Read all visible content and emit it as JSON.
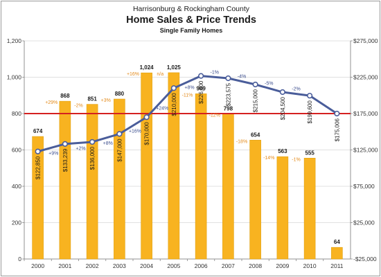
{
  "colors": {
    "bar": "#f8b320",
    "bar_edge": "#e0a010",
    "line": "#4a5d9a",
    "reference": "#d42020",
    "sales_pct": "#e38a1a",
    "price_pct": "#3a4c8c"
  },
  "chart_data": {
    "type": "bar",
    "title": "Harrisonburg & Rockingham County",
    "subtitle": "Home Sales & Price Trends",
    "subtitle2": "Single Family Homes",
    "categories": [
      "2000",
      "2001",
      "2002",
      "2003",
      "2004",
      "2005",
      "2006",
      "2007",
      "2008",
      "2009",
      "2010",
      "2011"
    ],
    "series": [
      {
        "axis": "left",
        "type": "bar",
        "values": [
          674,
          868,
          851,
          880,
          1024,
          1025,
          909,
          798,
          654,
          563,
          555,
          64
        ],
        "labels": [
          "674",
          "868",
          "851",
          "880",
          "1,024",
          "1,025",
          "909",
          "798",
          "654",
          "563",
          "555",
          "64"
        ],
        "change_labels": [
          "",
          "+29%",
          "-2%",
          "+3%",
          "+16%",
          "n/a",
          "-11%",
          "-12%",
          "-18%",
          "-14%",
          "-1%",
          ""
        ]
      },
      {
        "axis": "right",
        "type": "line",
        "values": [
          122850,
          133239,
          136000,
          147000,
          170000,
          210000,
          226800,
          223575,
          215000,
          204500,
          199600,
          175006
        ],
        "labels": [
          "$122,850",
          "$133,239",
          "$136,000",
          "$147,000",
          "$170,000",
          "$210,000",
          "$226,800",
          "$223,575",
          "$215,000",
          "$204,500",
          "$199,600",
          "$175,006"
        ],
        "change_labels": [
          "",
          "+9%",
          "+2%",
          "+8%",
          "+16%",
          "+24%",
          "+8%",
          "-1%",
          "-4%",
          "-5%",
          "-2%",
          ""
        ]
      }
    ],
    "reference_line": {
      "axis": "left",
      "value": 800
    },
    "left_axis": {
      "ylim": [
        0,
        1200
      ],
      "ticks": [
        0,
        200,
        400,
        600,
        800,
        1000,
        1200
      ],
      "tick_labels": [
        "0",
        "200",
        "400",
        "600",
        "800",
        "1,000",
        "1,200"
      ]
    },
    "right_axis": {
      "ylim": [
        -25000,
        275000
      ],
      "ticks": [
        -25000,
        25000,
        75000,
        125000,
        175000,
        225000,
        275000
      ],
      "tick_labels": [
        "-$25,000",
        "$25,000",
        "$75,000",
        "$125,000",
        "$175,000",
        "$225,000",
        "$275,000"
      ]
    },
    "grid": true,
    "legend": "none"
  }
}
